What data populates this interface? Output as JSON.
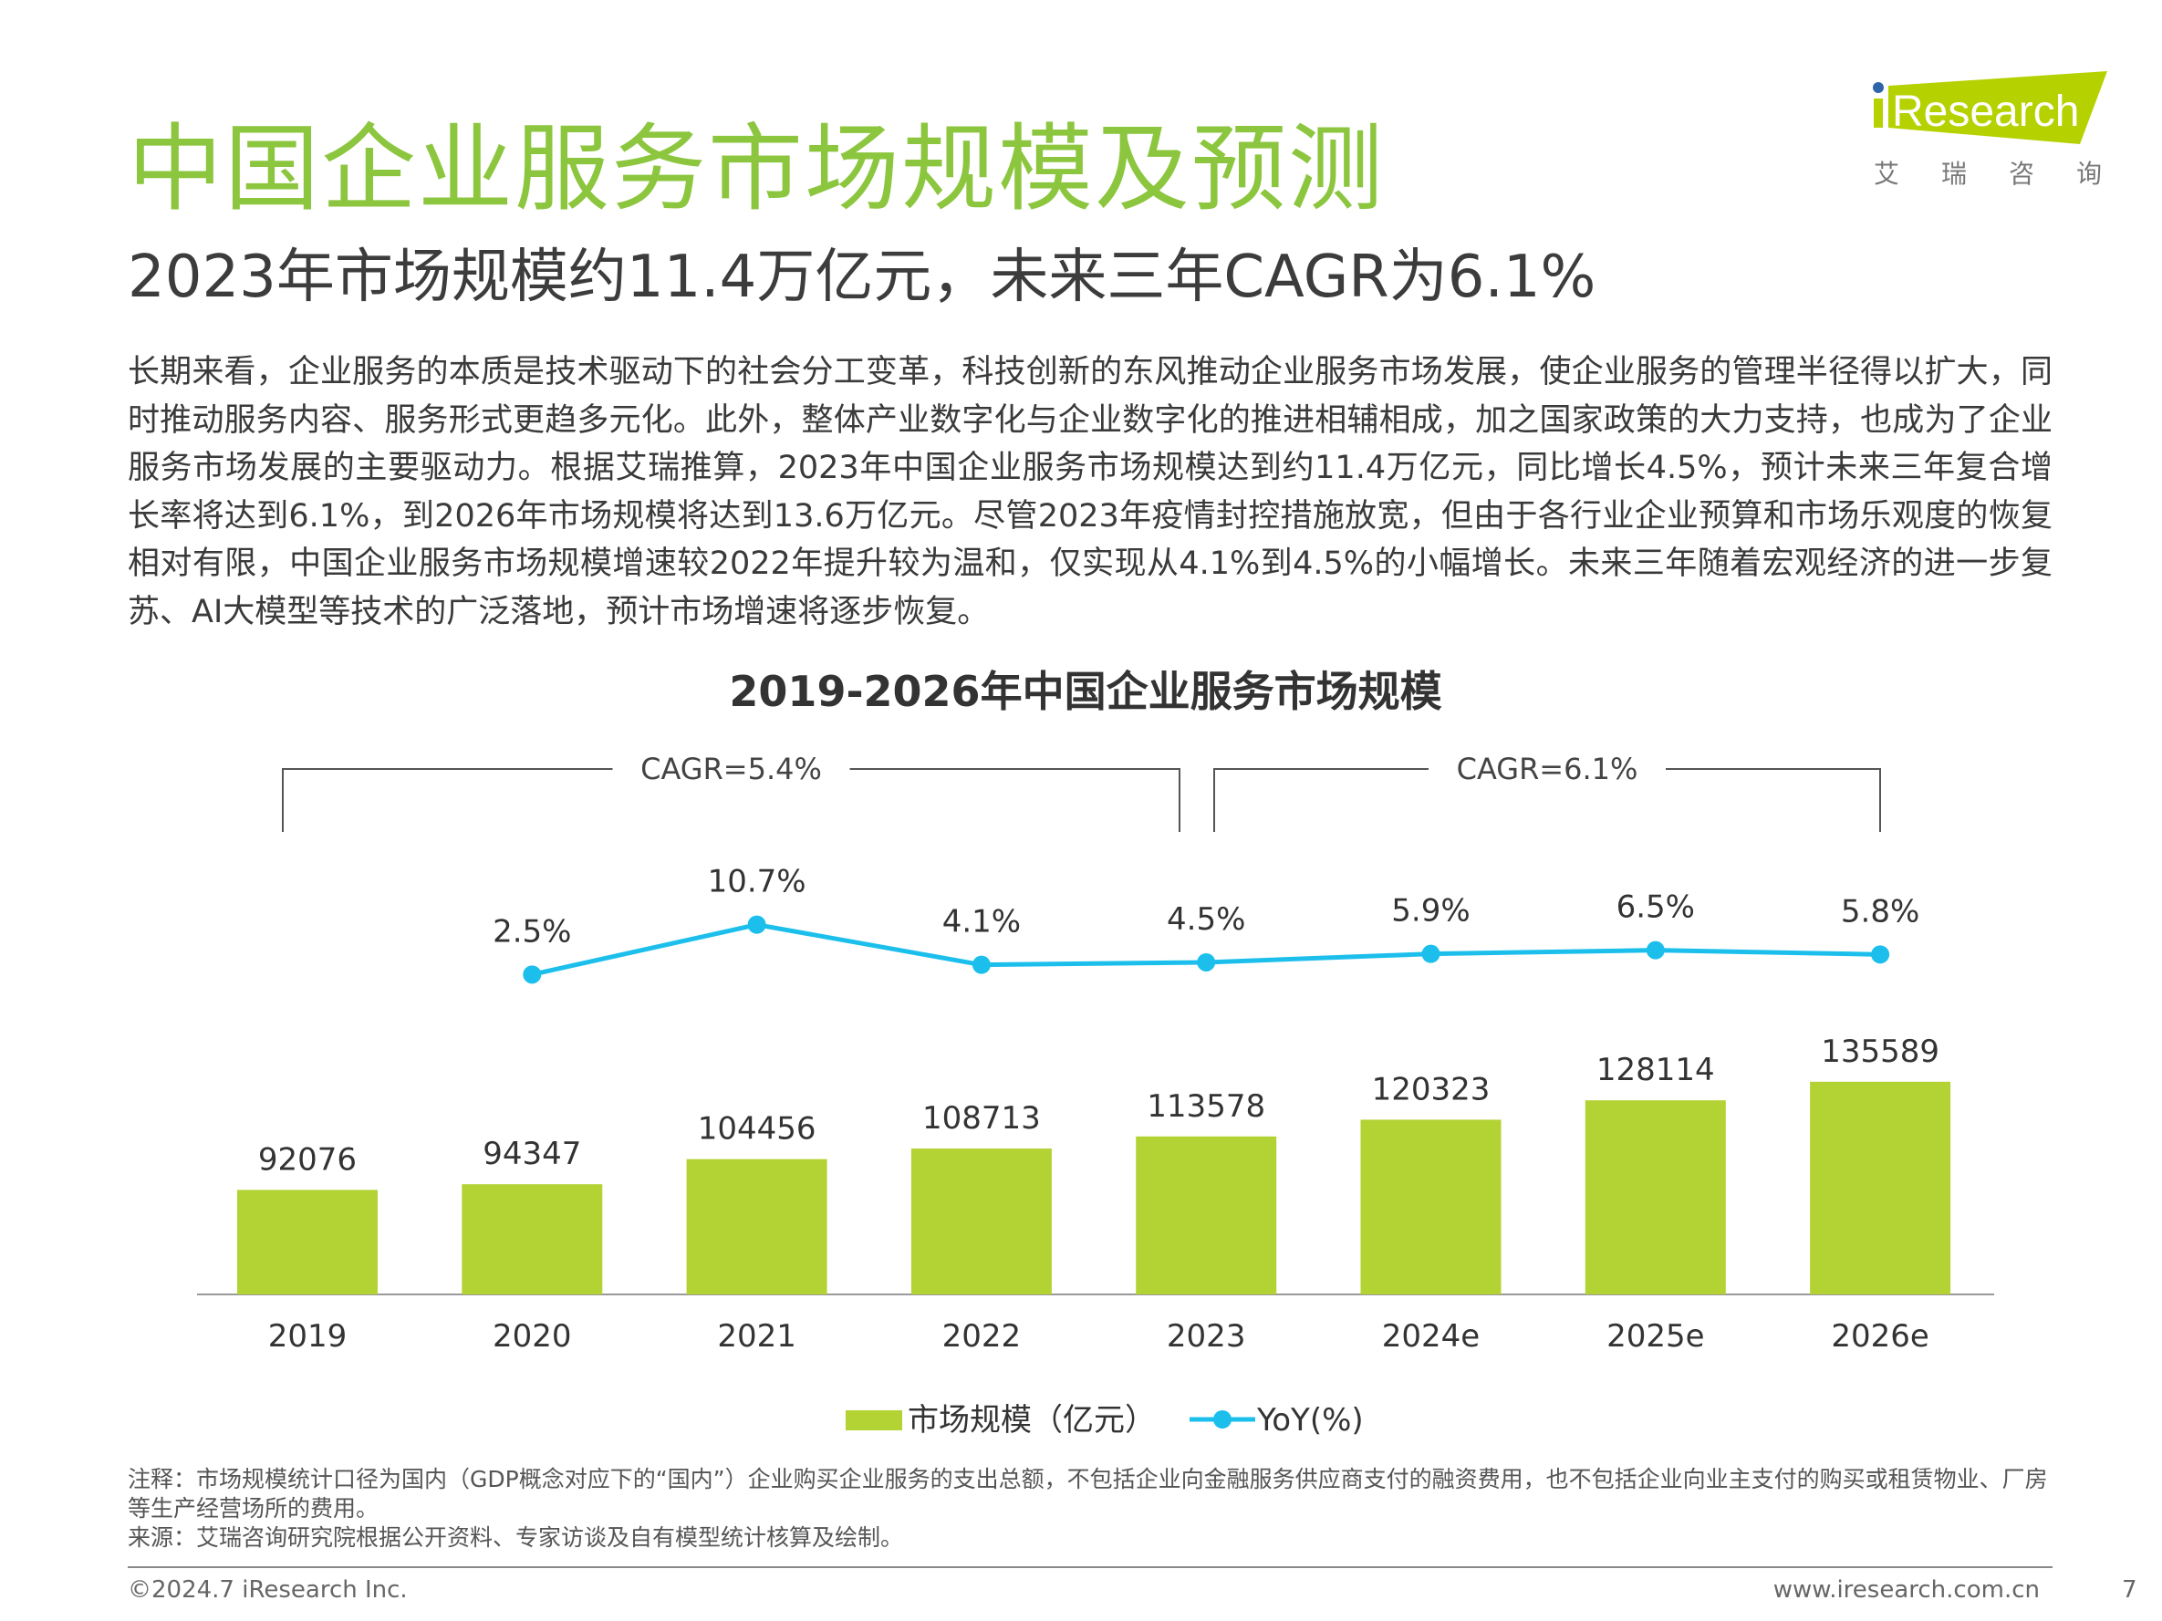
{
  "header": {
    "title": "中国企业服务市场规模及预测",
    "subtitle": "2023年市场规模约11.4万亿元，未来三年CAGR为6.1%",
    "logo_text": "iResearch",
    "logo_sub": "艾 瑞 咨 询"
  },
  "body": {
    "paragraph": "长期来看，企业服务的本质是技术驱动下的社会分工变革，科技创新的东风推动企业服务市场发展，使企业服务的管理半径得以扩大，同时推动服务内容、服务形式更趋多元化。此外，整体产业数字化与企业数字化的推进相辅相成，加之国家政策的大力支持，也成为了企业服务市场发展的主要驱动力。根据艾瑞推算，2023年中国企业服务市场规模达到约11.4万亿元，同比增长4.5%，预计未来三年复合增长率将达到6.1%，到2026年市场规模将达到13.6万亿元。尽管2023年疫情封控措施放宽，但由于各行业企业预算和市场乐观度的恢复相对有限，中国企业服务市场规模增速较2022年提升较为温和，仅实现从4.1%到4.5%的小幅增长。未来三年随着宏观经济的进一步复苏、AI大模型等技术的广泛落地，预计市场增速将逐步恢复。"
  },
  "chart_data": {
    "type": "bar+line",
    "title": "2019-2026年中国企业服务市场规模",
    "categories": [
      "2019",
      "2020",
      "2021",
      "2022",
      "2023",
      "2024e",
      "2025e",
      "2026e"
    ],
    "series": [
      {
        "name": "市场规模（亿元）",
        "type": "bar",
        "values": [
          92076,
          94347,
          104456,
          108713,
          113578,
          120323,
          128114,
          135589
        ]
      },
      {
        "name": "YoY(%)",
        "type": "line",
        "values": [
          null,
          2.5,
          10.7,
          4.1,
          4.5,
          5.9,
          6.5,
          5.8
        ],
        "labels": [
          "",
          "2.5%",
          "10.7%",
          "4.1%",
          "4.5%",
          "5.9%",
          "6.5%",
          "5.8%"
        ]
      }
    ],
    "annotations": [
      {
        "text": "CAGR=5.4%",
        "from": "2019",
        "to": "2023"
      },
      {
        "text": "CAGR=6.1%",
        "from": "2023",
        "to": "2026e"
      }
    ],
    "legend_position": "bottom",
    "bar_axis_min": 50000,
    "colors": {
      "bar": "#b3d334",
      "line": "#1cbfec"
    }
  },
  "notes": {
    "note": "注释：市场规模统计口径为国内（GDP概念对应下的“国内”）企业购买企业服务的支出总额，不包括企业向金融服务供应商支付的融资费用，也不包括企业向业主支付的购买或租赁物业、厂房等生产经营场所的费用。",
    "source": "来源：艾瑞咨询研究院根据公开资料、专家访谈及自有模型统计核算及绘制。"
  },
  "footer": {
    "copyright": "©2024.7 iResearch Inc.",
    "url": "www.iresearch.com.cn",
    "page": "7"
  }
}
